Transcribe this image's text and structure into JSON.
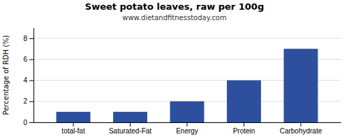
{
  "chart_data": {
    "type": "bar",
    "title": "Sweet potato leaves, raw per 100g",
    "subtitle": "www.dietandfitnesstoday.com",
    "ylabel": "Percentage of RDH (%)",
    "categories": [
      "total-fat",
      "Saturated-Fat",
      "Energy",
      "Protein",
      "Carbohydrate"
    ],
    "values": [
      1,
      1,
      2,
      4,
      7
    ],
    "color": "#2d4f9e",
    "ylim": [
      0,
      9
    ],
    "yticks": [
      0,
      2,
      4,
      6,
      8
    ],
    "grid": true
  }
}
